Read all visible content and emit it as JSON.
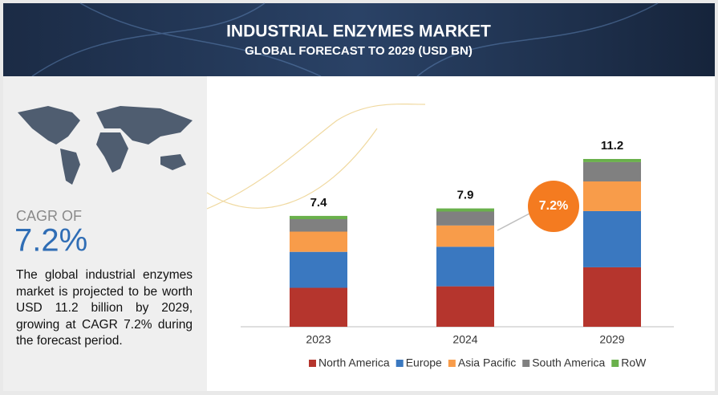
{
  "header": {
    "title": "INDUSTRIAL ENZYMES MARKET",
    "subtitle": "GLOBAL FORECAST TO 2029 (USD BN)"
  },
  "sidebar": {
    "label": "CAGR OF",
    "value": "7.2%",
    "text": "The global industrial enzymes market is projected to be worth USD 11.2 billion by 2029, growing at CAGR 7.2% during the forecast period."
  },
  "chart_data": {
    "type": "stacked-bar",
    "categories": [
      "2023",
      "2024",
      "2029"
    ],
    "totals": [
      7.4,
      7.9,
      11.2
    ],
    "series": [
      {
        "name": "North America",
        "color": "#b5352d",
        "values": [
          2.6,
          2.7,
          3.97
        ]
      },
      {
        "name": "Europe",
        "color": "#3a78c0",
        "values": [
          2.4,
          2.64,
          3.75
        ]
      },
      {
        "name": "Asia Pacific",
        "color": "#f89c4a",
        "values": [
          1.35,
          1.42,
          1.98
        ]
      },
      {
        "name": "South America",
        "color": "#808080",
        "values": [
          0.83,
          0.93,
          1.29
        ]
      },
      {
        "name": "RoW",
        "color": "#6ab04c",
        "values": [
          0.22,
          0.21,
          0.21
        ]
      }
    ],
    "annotation": "7.2%"
  }
}
